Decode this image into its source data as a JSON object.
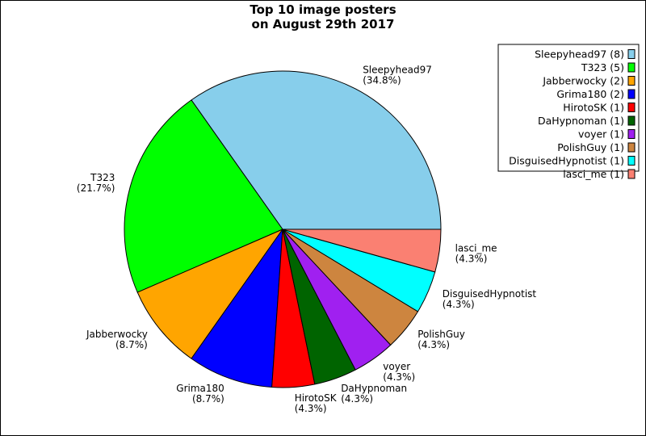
{
  "chart_data": {
    "type": "pie",
    "title_lines": [
      "Top 10 image posters",
      "on August 29th 2017"
    ],
    "legend_position": "top-right",
    "slices": [
      {
        "name": "Sleepyhead97",
        "count": 8,
        "percent": "34.8%",
        "legend": "Sleepyhead97 (8)",
        "color": "#87ceeb"
      },
      {
        "name": "T323",
        "count": 5,
        "percent": "21.7%",
        "legend": "T323 (5)",
        "color": "#00ff00"
      },
      {
        "name": "Jabberwocky",
        "count": 2,
        "percent": "8.7%",
        "legend": "Jabberwocky (2)",
        "color": "#ffa500"
      },
      {
        "name": "Grima180",
        "count": 2,
        "percent": "8.7%",
        "legend": "Grima180 (2)",
        "color": "#0000ff"
      },
      {
        "name": "HirotoSK",
        "count": 1,
        "percent": "4.3%",
        "legend": "HirotoSK (1)",
        "color": "#ff0000"
      },
      {
        "name": "DaHypnoman",
        "count": 1,
        "percent": "4.3%",
        "legend": "DaHypnoman (1)",
        "color": "#006400"
      },
      {
        "name": "voyer",
        "count": 1,
        "percent": "4.3%",
        "legend": "voyer (1)",
        "color": "#a020f0"
      },
      {
        "name": "PolishGuy",
        "count": 1,
        "percent": "4.3%",
        "legend": "PolishGuy (1)",
        "color": "#cd853f"
      },
      {
        "name": "DisguisedHypnotist",
        "count": 1,
        "percent": "4.3%",
        "legend": "DisguisedHypnotist (1)",
        "color": "#00ffff"
      },
      {
        "name": "lasci_me",
        "count": 1,
        "percent": "4.3%",
        "legend": "lasci_me (1)",
        "color": "#fa8072"
      }
    ]
  }
}
